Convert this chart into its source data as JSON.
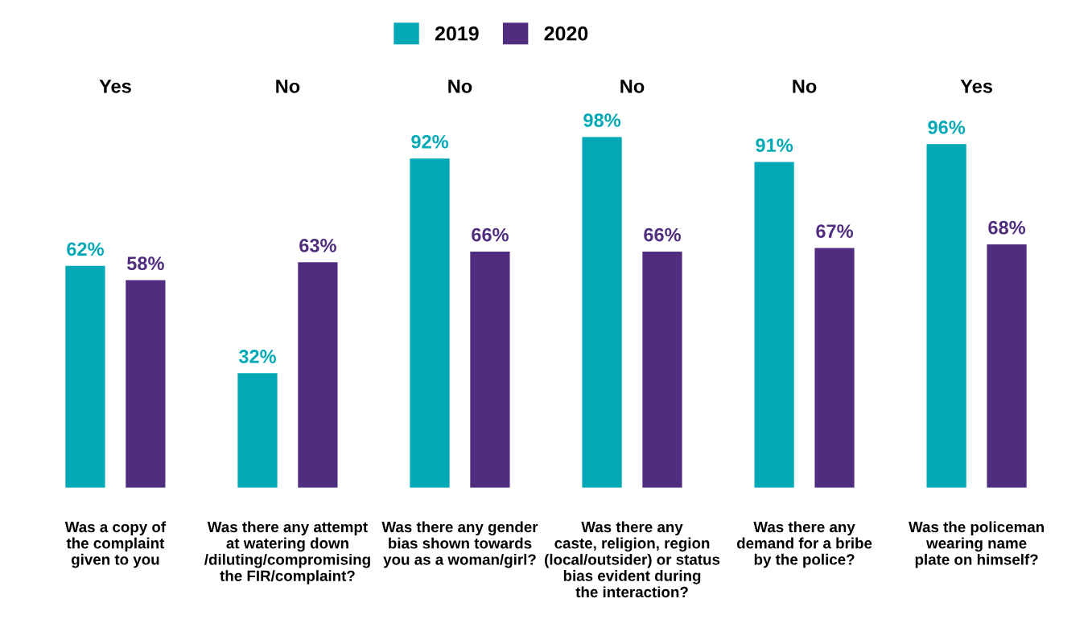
{
  "chart_data": {
    "type": "bar",
    "categories": [
      "Was a copy of\nthe complaint\ngiven to you",
      "Was there any attempt\nat watering down\n/diluting/compromising\nthe FIR/complaint?",
      "Was there any gender\nbias shown towards\nyou as a woman/girl?",
      "Was there any\ncaste, religion, region\n(local/outsider) or status\nbias evident during\nthe interaction?",
      "Was there any\ndemand for a bribe\nby the police?",
      "Was the policeman\nwearing name\nplate on himself?"
    ],
    "series": [
      {
        "name": "2019",
        "color": "#00a9b5",
        "values": [
          62,
          32,
          92,
          98,
          91,
          96
        ],
        "value_labels": [
          "62%",
          "32%",
          "92%",
          "98%",
          "91%",
          "96%"
        ]
      },
      {
        "name": "2020",
        "color": "#502d7e",
        "values": [
          58,
          63,
          66,
          66,
          67,
          68
        ],
        "value_labels": [
          "58%",
          "63%",
          "66%",
          "66%",
          "67%",
          "68%"
        ]
      }
    ],
    "annotations": [
      "Yes",
      "No",
      "No",
      "No",
      "No",
      "Yes"
    ],
    "tick_labels": "x",
    "legend": "top",
    "grid": false
  }
}
